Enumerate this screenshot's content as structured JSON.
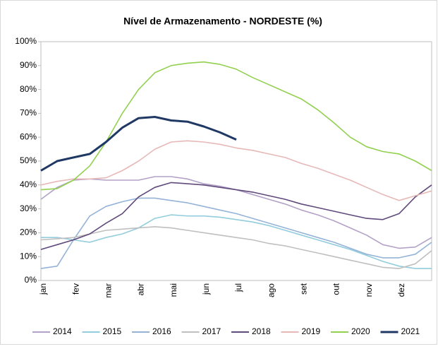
{
  "chart_data": {
    "type": "line",
    "title": "Nível de Armazenamento - NORDESTE (%)",
    "categories": [
      "jan",
      null,
      "fev",
      null,
      "mar",
      null,
      "abr",
      null,
      "mai",
      null,
      "jun",
      null,
      "jul",
      null,
      "ago",
      null,
      "set",
      null,
      "out",
      null,
      "nov",
      null,
      "dez",
      null,
      null
    ],
    "ylim": [
      0,
      100
    ],
    "yticks": [
      {
        "value": 0,
        "label": "0%"
      },
      {
        "value": 10,
        "label": "10%"
      },
      {
        "value": 20,
        "label": "20%"
      },
      {
        "value": 30,
        "label": "30%"
      },
      {
        "value": 40,
        "label": "40%"
      },
      {
        "value": 50,
        "label": "50%"
      },
      {
        "value": 60,
        "label": "60%"
      },
      {
        "value": 70,
        "label": "70%"
      },
      {
        "value": 80,
        "label": "80%"
      },
      {
        "value": 90,
        "label": "90%"
      },
      {
        "value": 100,
        "label": "100%"
      }
    ],
    "legend": "bottom",
    "series": [
      {
        "name": "2014",
        "color": "#b3a2c7",
        "values": [
          34,
          39,
          42,
          42.5,
          42,
          42,
          42,
          43.5,
          43.5,
          42.5,
          40.5,
          39.5,
          38,
          36,
          34,
          32,
          29.5,
          27.5,
          25,
          22,
          19,
          15,
          13.5,
          14,
          18
        ]
      },
      {
        "name": "2015",
        "color": "#93cddd",
        "values": [
          18,
          18,
          17,
          16,
          18,
          19.5,
          22,
          26,
          27.5,
          27,
          27,
          26.5,
          25.5,
          24.5,
          23,
          21,
          19,
          17,
          15,
          13,
          10.5,
          8,
          6,
          5,
          5
        ]
      },
      {
        "name": "2016",
        "color": "#95b3d7",
        "values": [
          5,
          6,
          17,
          27,
          31,
          33,
          34.5,
          34.5,
          33.5,
          32.5,
          31,
          29.5,
          28,
          26,
          24,
          22,
          20,
          18,
          16,
          13.5,
          11,
          9.5,
          9.5,
          11,
          16
        ]
      },
      {
        "name": "2017",
        "color": "#bfbfbf",
        "values": [
          17,
          17.5,
          18,
          19.5,
          21,
          21.5,
          22,
          22.5,
          22,
          21,
          20,
          19,
          18,
          17,
          15.5,
          14.5,
          13,
          11.5,
          10,
          8.5,
          7,
          5.5,
          5,
          7,
          12.5
        ]
      },
      {
        "name": "2018",
        "color": "#604a7b",
        "values": [
          13,
          15,
          17,
          19.5,
          24,
          28,
          35,
          39,
          41,
          40.5,
          40,
          39,
          38,
          37,
          35.5,
          34,
          32,
          30.5,
          29,
          27.5,
          26,
          25.5,
          28,
          35,
          40
        ]
      },
      {
        "name": "2019",
        "color": "#e6b9b8",
        "values": [
          40,
          41.5,
          42.5,
          42.5,
          43,
          46,
          50,
          55,
          58,
          58.5,
          58,
          57,
          55.5,
          54.5,
          53,
          51.5,
          49,
          47,
          44.5,
          42,
          39,
          36,
          33.5,
          35.5,
          37.5
        ]
      },
      {
        "name": "2020",
        "color": "#92d050",
        "values": [
          38,
          38.5,
          42,
          48,
          58,
          70,
          80,
          87,
          90,
          91,
          91.5,
          90.5,
          88.5,
          85,
          82,
          79,
          76,
          71.5,
          66,
          60,
          56,
          54,
          53,
          50,
          46
        ]
      },
      {
        "name": "2021",
        "color": "#1f3864",
        "values": [
          46,
          50,
          51.5,
          53,
          58,
          64,
          68,
          68.5,
          67,
          66.5,
          64.5,
          62,
          59,
          null,
          null,
          null,
          null,
          null,
          null,
          null,
          null,
          null,
          null,
          null,
          null
        ]
      }
    ]
  }
}
